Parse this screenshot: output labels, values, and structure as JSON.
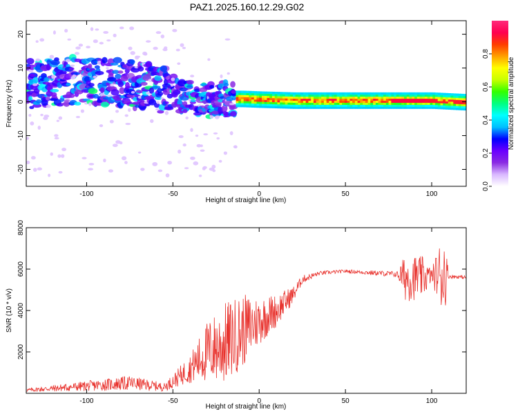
{
  "title": "PAZ1.2025.160.12.29.G02",
  "chart_data": [
    {
      "type": "heatmap",
      "xlabel": "Height of straight line (km)",
      "ylabel": "Frequency (Hz)",
      "xlim": [
        -135,
        120
      ],
      "ylim": [
        -25,
        24
      ],
      "xticks": [
        -100,
        -50,
        0,
        50,
        100
      ],
      "yticks": [
        -20,
        -10,
        0,
        10,
        20
      ],
      "colorbar": {
        "label": "Normalized spectral amplitude",
        "range": [
          0,
          1
        ],
        "ticks": [
          "0.0",
          "0.2",
          "0.4",
          "0.6",
          "0.8"
        ],
        "tick_values": [
          0,
          0.2,
          0.4,
          0.6,
          0.8
        ],
        "colors": [
          "#ffffff",
          "#d9b8ff",
          "#8a2be2",
          "#6a00ff",
          "#0000ff",
          "#00bfff",
          "#00ffff",
          "#00ff80",
          "#33ff00",
          "#c8ff00",
          "#ffff00",
          "#ffa000",
          "#ff3c00",
          "#ff0050",
          "#ff2a7a"
        ]
      },
      "ridge": [
        {
          "x": -135,
          "f": 5
        },
        {
          "x": -120,
          "f": 6
        },
        {
          "x": -100,
          "f": 6.5
        },
        {
          "x": -80,
          "f": 5.5
        },
        {
          "x": -60,
          "f": 4
        },
        {
          "x": -45,
          "f": 1.5
        },
        {
          "x": -35,
          "f": 0
        },
        {
          "x": -20,
          "f": 1
        },
        {
          "x": -10,
          "f": 1
        },
        {
          "x": 0,
          "f": 0.8
        },
        {
          "x": 20,
          "f": 0.5
        },
        {
          "x": 50,
          "f": 0.5
        },
        {
          "x": 80,
          "f": 0.5
        },
        {
          "x": 100,
          "f": 0.5
        },
        {
          "x": 120,
          "f": 0
        }
      ]
    },
    {
      "type": "line",
      "xlabel": "Height of straight line (km)",
      "ylabel": "SNR (10 * v/v)",
      "xlim": [
        -135,
        120
      ],
      "ylim": [
        0,
        8000
      ],
      "xticks": [
        -100,
        -50,
        0,
        50,
        100
      ],
      "yticks": [
        2000,
        4000,
        6000,
        8000
      ],
      "line_color": "#e8322d",
      "series": [
        {
          "envelope": [
            {
              "x": -135,
              "mean": 150,
              "amp": 80
            },
            {
              "x": -100,
              "mean": 350,
              "amp": 250
            },
            {
              "x": -75,
              "mean": 500,
              "amp": 350
            },
            {
              "x": -55,
              "mean": 300,
              "amp": 200
            },
            {
              "x": -48,
              "mean": 700,
              "amp": 400
            },
            {
              "x": -40,
              "mean": 1200,
              "amp": 700
            },
            {
              "x": -30,
              "mean": 2000,
              "amp": 1500
            },
            {
              "x": -20,
              "mean": 2400,
              "amp": 2000
            },
            {
              "x": -10,
              "mean": 3000,
              "amp": 1800
            },
            {
              "x": 0,
              "mean": 3500,
              "amp": 1200
            },
            {
              "x": 10,
              "mean": 4000,
              "amp": 800
            },
            {
              "x": 20,
              "mean": 4800,
              "amp": 400
            },
            {
              "x": 25,
              "mean": 5500,
              "amp": 200
            },
            {
              "x": 35,
              "mean": 5800,
              "amp": 100
            },
            {
              "x": 50,
              "mean": 5900,
              "amp": 80
            },
            {
              "x": 80,
              "mean": 5750,
              "amp": 150
            },
            {
              "x": 85,
              "mean": 5600,
              "amp": 1200
            },
            {
              "x": 95,
              "mean": 5600,
              "amp": 1000
            },
            {
              "x": 100,
              "mean": 5700,
              "amp": 300
            },
            {
              "x": 107,
              "mean": 5800,
              "amp": 2200
            },
            {
              "x": 110,
              "mean": 5650,
              "amp": 100
            },
            {
              "x": 120,
              "mean": 5600,
              "amp": 80
            }
          ]
        }
      ]
    }
  ]
}
